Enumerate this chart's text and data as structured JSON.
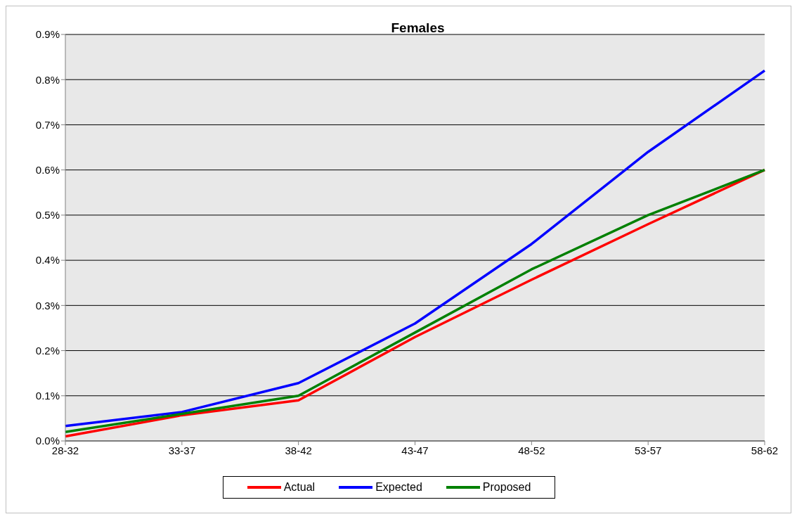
{
  "chart_data": {
    "type": "line",
    "title": "Females",
    "categories": [
      "28-32",
      "33-37",
      "38-42",
      "43-47",
      "48-52",
      "53-57",
      "58-62"
    ],
    "series": [
      {
        "name": "Actual",
        "color": "#ff0000",
        "values": [
          0.01,
          0.057,
          0.09,
          0.23,
          0.357,
          0.48,
          0.6
        ]
      },
      {
        "name": "Expected",
        "color": "#0000ff",
        "values": [
          0.033,
          0.064,
          0.128,
          0.26,
          0.436,
          0.64,
          0.82
        ]
      },
      {
        "name": "Proposed",
        "color": "#008000",
        "values": [
          0.02,
          0.06,
          0.1,
          0.24,
          0.38,
          0.5,
          0.6
        ]
      }
    ],
    "ylim": [
      0,
      0.9
    ],
    "yticks": [
      {
        "value": 0,
        "label": "0.0%"
      },
      {
        "value": 0.1,
        "label": "0.1%"
      },
      {
        "value": 0.2,
        "label": "0.2%"
      },
      {
        "value": 0.3,
        "label": "0.3%"
      },
      {
        "value": 0.4,
        "label": "0.4%"
      },
      {
        "value": 0.5,
        "label": "0.5%"
      },
      {
        "value": 0.6,
        "label": "0.6%"
      },
      {
        "value": 0.7,
        "label": "0.7%"
      },
      {
        "value": 0.8,
        "label": "0.8%"
      },
      {
        "value": 0.9,
        "label": "0.9%"
      }
    ],
    "grid": "y",
    "legend": "bottom",
    "marker": "none",
    "line_style": "solid"
  }
}
